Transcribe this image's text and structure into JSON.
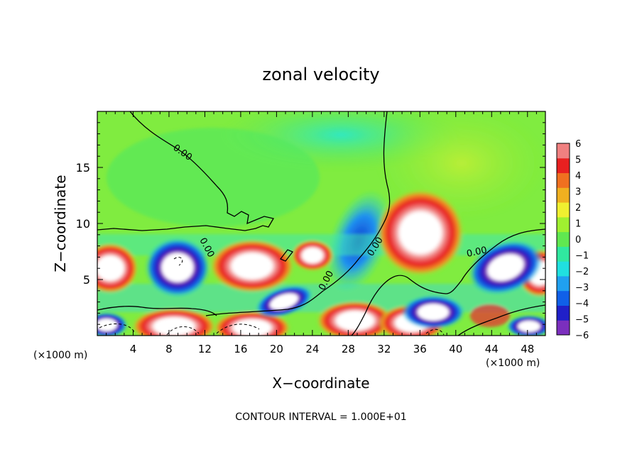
{
  "chart_data": {
    "type": "heatmap",
    "title": "zonal velocity",
    "xlabel": "X−coordinate",
    "ylabel": "Z−coordinate",
    "x_unit": "(×1000 m)",
    "z_unit": "(×1000 m)",
    "xlim": [
      0,
      50
    ],
    "ylim": [
      0,
      20
    ],
    "x_ticks": [
      "4",
      "8",
      "12",
      "16",
      "20",
      "24",
      "28",
      "32",
      "36",
      "40",
      "44",
      "48"
    ],
    "y_ticks": [
      "5",
      "10",
      "15"
    ],
    "colorbar": {
      "ticks": [
        "6",
        "5",
        "4",
        "3",
        "2",
        "1",
        "0",
        "−1",
        "−2",
        "−3",
        "−4",
        "−5",
        "−6"
      ],
      "range": [
        -6,
        6
      ],
      "colors": [
        "#7b2fbe",
        "#2020c8",
        "#1060e8",
        "#20a0f0",
        "#20e0e0",
        "#30e8a0",
        "#60e850",
        "#a0f030",
        "#f0f030",
        "#f0b020",
        "#f07020",
        "#e82020",
        "#f08080"
      ]
    },
    "contour_label": "0.00",
    "contour_interval": "CONTOUR INTERVAL = 1.000E+01"
  }
}
